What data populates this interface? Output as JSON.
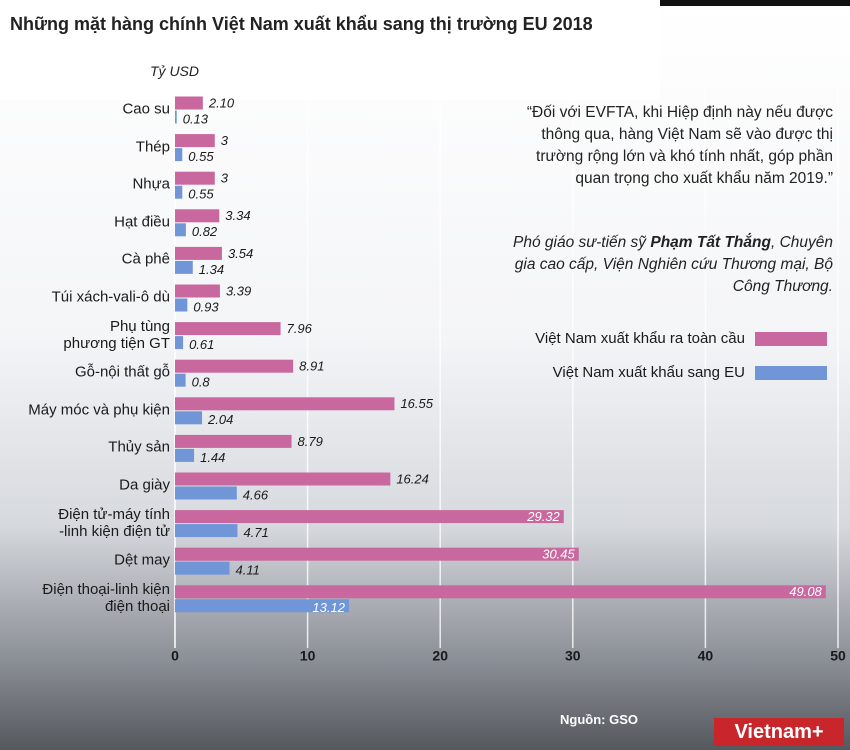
{
  "chart_data": {
    "type": "bar",
    "orientation": "horizontal",
    "title": "Những mặt hàng chính Việt Nam xuất khẩu sang thị trường EU 2018",
    "unit_label": "Tỷ USD",
    "categories": [
      "Cao su",
      "Thép",
      "Nhựa",
      "Hạt điều",
      "Cà phê",
      "Túi xách-vali-ô dù",
      "Phụ tùng\nphương tiện GT",
      "Gỗ-nội thất gỗ",
      "Máy móc và phụ kiện",
      "Thủy sản",
      "Da giày",
      "Điện tử-máy tính\n-linh kiện điện tử",
      "Dệt may",
      "Điện thoại-linh kiện\nđiện thoại"
    ],
    "series": [
      {
        "name": "Việt Nam xuất khẩu ra toàn cầu",
        "color": "#c9689f",
        "values": [
          2.1,
          3,
          3,
          3.34,
          3.54,
          3.39,
          7.96,
          8.91,
          16.55,
          8.79,
          16.24,
          29.32,
          30.45,
          49.08
        ],
        "value_labels": [
          "2.10",
          "3",
          "3",
          "3.34",
          "3.54",
          "3.39",
          "7.96",
          "8.91",
          "16.55",
          "8.79",
          "16.24",
          "29.32",
          "30.45",
          "49.08"
        ]
      },
      {
        "name": "Việt Nam xuất khẩu sang EU",
        "color": "#7096d8",
        "values": [
          0.13,
          0.55,
          0.55,
          0.82,
          1.34,
          0.93,
          0.61,
          0.8,
          2.04,
          1.44,
          4.66,
          4.71,
          4.11,
          13.12
        ],
        "value_labels": [
          "0.13",
          "0.55",
          "0.55",
          "0.82",
          "1.34",
          "0.93",
          "0.61",
          "0.8",
          "2.04",
          "1.44",
          "4.66",
          "4.71",
          "4.11",
          "13.12"
        ]
      }
    ],
    "xlim": [
      0,
      50
    ],
    "xticks": [
      0,
      10,
      20,
      30,
      40,
      50
    ],
    "grid": true,
    "legend": "right",
    "quote": "“Đối với EVFTA, khi Hiệp định này nếu được thông qua, hàng Việt Nam sẽ vào được thị trường rộng lớn và khó tính nhất, góp phần quan trọng cho xuất khẩu năm 2019.”",
    "author_prefix": "Phó giáo sư-tiến sỹ",
    "author_name": "Phạm Tất Thắng",
    "author_suffix": ", Chuyên gia cao cấp, Viện Nghiên cứu Thương mại, Bộ Công Thương.",
    "source": "Nguồn: GSO",
    "logo": "Vietnam+"
  }
}
